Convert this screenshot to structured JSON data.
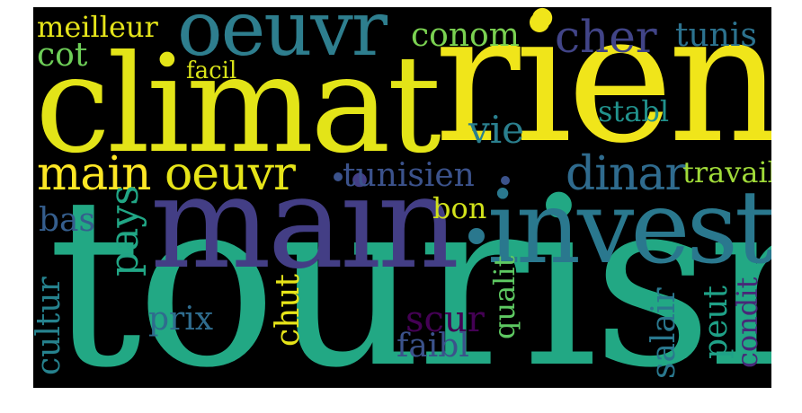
{
  "colors": {
    "background": "#000000",
    "page": "#ffffff"
  },
  "words": {
    "tourism": {
      "text": "tourism",
      "color": "#22a884"
    },
    "climat": {
      "text": "climat",
      "color": "#e3e418"
    },
    "rien": {
      "text": "rien",
      "color": "#f0e51a"
    },
    "main_big": {
      "text": "main",
      "color": "#433e85"
    },
    "invest": {
      "text": "invest",
      "color": "#2a788e"
    },
    "oeuvr_top": {
      "text": "oeuvr",
      "color": "#2e7e8e"
    },
    "main_mid": {
      "text": "main",
      "color": "#fde725"
    },
    "oeuvr_mid": {
      "text": "oeuvr",
      "color": "#e6e419"
    },
    "tunisien": {
      "text": "tunisien",
      "color": "#3b528b"
    },
    "dinar": {
      "text": "dinar",
      "color": "#2f6b8e"
    },
    "cher": {
      "text": "cher",
      "color": "#414487"
    },
    "conom": {
      "text": "conom",
      "color": "#7ad151"
    },
    "meilleur": {
      "text": "meilleur",
      "color": "#e5e41a"
    },
    "cot": {
      "text": "cot",
      "color": "#6ece58"
    },
    "tunis": {
      "text": "tunis",
      "color": "#2c728e"
    },
    "facil": {
      "text": "facil",
      "color": "#d8e219"
    },
    "vie": {
      "text": "vie",
      "color": "#2a7f8e"
    },
    "stabl": {
      "text": "stabl",
      "color": "#21918c"
    },
    "travail": {
      "text": "travail",
      "color": "#a0da39"
    },
    "pays": {
      "text": "pays",
      "color": "#21a685"
    },
    "bas": {
      "text": "bas",
      "color": "#355e8d"
    },
    "bon": {
      "text": "bon",
      "color": "#d2e21b"
    },
    "prix": {
      "text": "prix",
      "color": "#2f6c8e"
    },
    "chut": {
      "text": "chut",
      "color": "#e6e419"
    },
    "scur": {
      "text": "scur",
      "color": "#440154"
    },
    "faibl": {
      "text": "faibl",
      "color": "#3b528b"
    },
    "qualit": {
      "text": "qualit",
      "color": "#5ec962"
    },
    "salair": {
      "text": "salair",
      "color": "#2a788e"
    },
    "peut": {
      "text": "peut",
      "color": "#1fa187"
    },
    "condit": {
      "text": "condit",
      "color": "#482878"
    },
    "cultur": {
      "text": "cultur",
      "color": "#26828e"
    }
  }
}
